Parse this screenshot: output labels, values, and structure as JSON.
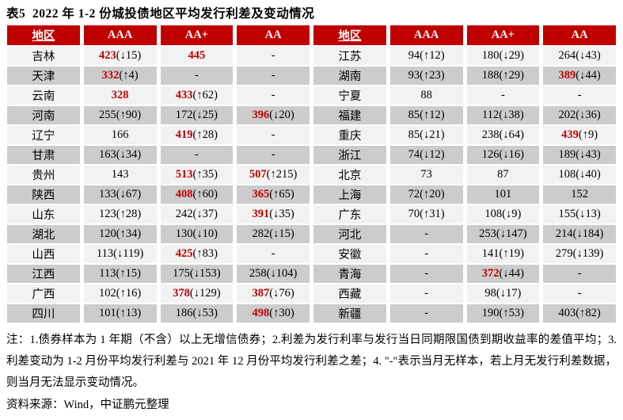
{
  "title": "表5  2022 年 1-2 份城投债地区平均发行利差及变动情况",
  "table": {
    "headers": [
      "地区",
      "AAA",
      "AA+",
      "AA",
      "地区",
      "AAA",
      "AA+",
      "AA"
    ],
    "left_rows": [
      {
        "region": "吉林",
        "cells": [
          {
            "num": "423",
            "chg": "↓15",
            "red": true
          },
          {
            "num": "445",
            "chg": "",
            "red": true
          },
          {
            "num": "-",
            "chg": "",
            "red": false
          }
        ]
      },
      {
        "region": "天津",
        "cells": [
          {
            "num": "332",
            "chg": "↑4",
            "red": true
          },
          {
            "num": "-",
            "chg": "",
            "red": false
          },
          {
            "num": "-",
            "chg": "",
            "red": false
          }
        ]
      },
      {
        "region": "云南",
        "cells": [
          {
            "num": "328",
            "chg": "",
            "red": true
          },
          {
            "num": "433",
            "chg": "↑62",
            "red": true
          },
          {
            "num": "-",
            "chg": "",
            "red": false
          }
        ]
      },
      {
        "region": "河南",
        "cells": [
          {
            "num": "255",
            "chg": "↑90",
            "red": false
          },
          {
            "num": "172",
            "chg": "↓25",
            "red": false
          },
          {
            "num": "396",
            "chg": "↓20",
            "red": true
          }
        ]
      },
      {
        "region": "辽宁",
        "cells": [
          {
            "num": "166",
            "chg": "",
            "red": false
          },
          {
            "num": "419",
            "chg": "↑28",
            "red": true
          },
          {
            "num": "-",
            "chg": "",
            "red": false
          }
        ]
      },
      {
        "region": "甘肃",
        "cells": [
          {
            "num": "163",
            "chg": "↓34",
            "red": false
          },
          {
            "num": "-",
            "chg": "",
            "red": false
          },
          {
            "num": "-",
            "chg": "",
            "red": false
          }
        ]
      },
      {
        "region": "贵州",
        "cells": [
          {
            "num": "143",
            "chg": "",
            "red": false
          },
          {
            "num": "513",
            "chg": "↑35",
            "red": true
          },
          {
            "num": "507",
            "chg": "↑215",
            "red": true
          }
        ]
      },
      {
        "region": "陕西",
        "cells": [
          {
            "num": "133",
            "chg": "↓67",
            "red": false
          },
          {
            "num": "408",
            "chg": "↑60",
            "red": true
          },
          {
            "num": "365",
            "chg": "↑65",
            "red": true
          }
        ]
      },
      {
        "region": "山东",
        "cells": [
          {
            "num": "123",
            "chg": "↑28",
            "red": false
          },
          {
            "num": "242",
            "chg": "↓37",
            "red": false
          },
          {
            "num": "391",
            "chg": "↓35",
            "red": true
          }
        ]
      },
      {
        "region": "湖北",
        "cells": [
          {
            "num": "120",
            "chg": "↑34",
            "red": false
          },
          {
            "num": "130",
            "chg": "↓10",
            "red": false
          },
          {
            "num": "282",
            "chg": "↓15",
            "red": false
          }
        ]
      },
      {
        "region": "山西",
        "cells": [
          {
            "num": "113",
            "chg": "↓119",
            "red": false
          },
          {
            "num": "425",
            "chg": "↑83",
            "red": true
          },
          {
            "num": "-",
            "chg": "",
            "red": false
          }
        ]
      },
      {
        "region": "江西",
        "cells": [
          {
            "num": "113",
            "chg": "↑15",
            "red": false
          },
          {
            "num": "175",
            "chg": "↓153",
            "red": false
          },
          {
            "num": "258",
            "chg": "↓104",
            "red": false
          }
        ]
      },
      {
        "region": "广西",
        "cells": [
          {
            "num": "102",
            "chg": "↑16",
            "red": false
          },
          {
            "num": "378",
            "chg": "↓129",
            "red": true
          },
          {
            "num": "387",
            "chg": "↓76",
            "red": true
          }
        ]
      },
      {
        "region": "四川",
        "cells": [
          {
            "num": "101",
            "chg": "↑13",
            "red": false
          },
          {
            "num": "186",
            "chg": "↓53",
            "red": false
          },
          {
            "num": "498",
            "chg": "↑30",
            "red": true
          }
        ]
      }
    ],
    "right_rows": [
      {
        "region": "江苏",
        "cells": [
          {
            "num": "94",
            "chg": "↑12",
            "red": false
          },
          {
            "num": "180",
            "chg": "↓29",
            "red": false
          },
          {
            "num": "264",
            "chg": "↓43",
            "red": false
          }
        ]
      },
      {
        "region": "湖南",
        "cells": [
          {
            "num": "93",
            "chg": "↑23",
            "red": false
          },
          {
            "num": "188",
            "chg": "↑29",
            "red": false
          },
          {
            "num": "389",
            "chg": "↓44",
            "red": true
          }
        ]
      },
      {
        "region": "宁夏",
        "cells": [
          {
            "num": "88",
            "chg": "",
            "red": false
          },
          {
            "num": "-",
            "chg": "",
            "red": false
          },
          {
            "num": "-",
            "chg": "",
            "red": false
          }
        ]
      },
      {
        "region": "福建",
        "cells": [
          {
            "num": "85",
            "chg": "↑12",
            "red": false
          },
          {
            "num": "112",
            "chg": "↓38",
            "red": false
          },
          {
            "num": "202",
            "chg": "↓36",
            "red": false
          }
        ]
      },
      {
        "region": "重庆",
        "cells": [
          {
            "num": "85",
            "chg": "↓21",
            "red": false
          },
          {
            "num": "238",
            "chg": "↓64",
            "red": false
          },
          {
            "num": "439",
            "chg": "↑9",
            "red": true
          }
        ]
      },
      {
        "region": "浙江",
        "cells": [
          {
            "num": "74",
            "chg": "↓12",
            "red": false
          },
          {
            "num": "126",
            "chg": "↓16",
            "red": false
          },
          {
            "num": "189",
            "chg": "↓43",
            "red": false
          }
        ]
      },
      {
        "region": "北京",
        "cells": [
          {
            "num": "73",
            "chg": "",
            "red": false
          },
          {
            "num": "87",
            "chg": "",
            "red": false
          },
          {
            "num": "108",
            "chg": "↓40",
            "red": false
          }
        ]
      },
      {
        "region": "上海",
        "cells": [
          {
            "num": "72",
            "chg": "↑20",
            "red": false
          },
          {
            "num": "101",
            "chg": "",
            "red": false
          },
          {
            "num": "152",
            "chg": "",
            "red": false
          }
        ]
      },
      {
        "region": "广东",
        "cells": [
          {
            "num": "70",
            "chg": "↑31",
            "red": false
          },
          {
            "num": "108",
            "chg": "↓9",
            "red": false
          },
          {
            "num": "155",
            "chg": "↓13",
            "red": false
          }
        ]
      },
      {
        "region": "河北",
        "cells": [
          {
            "num": "-",
            "chg": "",
            "red": false
          },
          {
            "num": "253",
            "chg": "↓147",
            "red": false
          },
          {
            "num": "214",
            "chg": "↓184",
            "red": false
          }
        ]
      },
      {
        "region": "安徽",
        "cells": [
          {
            "num": "-",
            "chg": "",
            "red": false
          },
          {
            "num": "141",
            "chg": "↑19",
            "red": false
          },
          {
            "num": "279",
            "chg": "↓139",
            "red": false
          }
        ]
      },
      {
        "region": "青海",
        "cells": [
          {
            "num": "-",
            "chg": "",
            "red": false
          },
          {
            "num": "372",
            "chg": "↓44",
            "red": true
          },
          {
            "num": "-",
            "chg": "",
            "red": false
          }
        ]
      },
      {
        "region": "西藏",
        "cells": [
          {
            "num": "-",
            "chg": "",
            "red": false
          },
          {
            "num": "98",
            "chg": "↓17",
            "red": false
          },
          {
            "num": "-",
            "chg": "",
            "red": false
          }
        ]
      },
      {
        "region": "新疆",
        "cells": [
          {
            "num": "-",
            "chg": "",
            "red": false
          },
          {
            "num": "190",
            "chg": "↑53",
            "red": false
          },
          {
            "num": "403",
            "chg": "↑82",
            "red": false
          }
        ]
      }
    ]
  },
  "notes": "注：1.债券样本为 1 年期（不含）以上无增信债券；2.利差为发行利率与发行当日同期限国债到期收益率的差值平均；3.利差变动为 1-2 月份平均发行利差与 2021 年 12 月份平均发行利差之差；4. \"-\"表示当月无样本，若上月无发行利差数据，则当月无法显示变动情况。",
  "source": "资料来源：Wind，中证鹏元整理",
  "colors": {
    "header_bg": "#C00000",
    "red_value": "#C00000",
    "row_light": "#F2F2F2",
    "row_dark": "#CCCCCC"
  }
}
